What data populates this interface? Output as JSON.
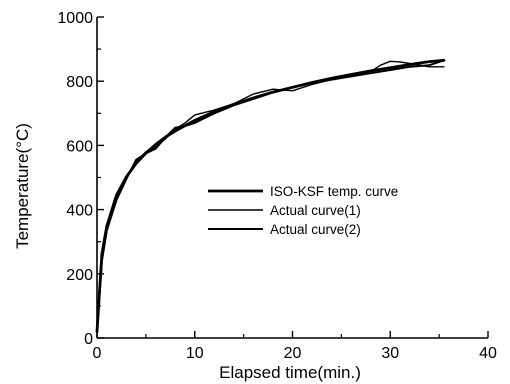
{
  "chart_data": {
    "type": "line",
    "xlabel": "Elapsed time(min.)",
    "ylabel": "Temperature(°C)",
    "xlim": [
      0,
      40
    ],
    "ylim": [
      0,
      1000
    ],
    "x_ticks": [
      "0",
      "10",
      "20",
      "30",
      "40"
    ],
    "y_ticks": [
      "0",
      "200",
      "400",
      "600",
      "800",
      "1000"
    ],
    "grid": false,
    "legend_position": "center-right",
    "series": [
      {
        "name": "ISO-KSF temp. curve",
        "color": "#000000",
        "x": [
          0,
          0.5,
          1,
          2,
          3,
          4,
          5,
          6,
          7,
          8,
          10,
          12,
          14,
          16,
          18,
          20,
          22,
          24,
          26,
          28,
          30,
          32,
          34,
          35.5
        ],
        "y": [
          20,
          262,
          349,
          445,
          502,
          544,
          576,
          603,
          626,
          645,
          678,
          705,
          728,
          748,
          766,
          781,
          796,
          809,
          821,
          832,
          842,
          852,
          861,
          865
        ]
      },
      {
        "name": "Actual curve(1)",
        "color": "#000000",
        "x": [
          0,
          0.5,
          1,
          2,
          3,
          4,
          5,
          6,
          7,
          8,
          9,
          10,
          12,
          14,
          16,
          18,
          20,
          22,
          24,
          26,
          28,
          29,
          30,
          31,
          32,
          33,
          34,
          35.5
        ],
        "y": [
          20,
          250,
          345,
          440,
          500,
          550,
          580,
          595,
          620,
          650,
          670,
          695,
          710,
          730,
          760,
          775,
          770,
          790,
          805,
          820,
          830,
          850,
          862,
          860,
          855,
          850,
          845,
          845
        ]
      },
      {
        "name": "Actual curve(2)",
        "color": "#000000",
        "x": [
          0,
          0.5,
          1,
          2,
          3,
          4,
          5,
          6,
          7,
          8,
          9,
          10,
          12,
          14,
          16,
          18,
          20,
          22,
          24,
          26,
          28,
          30,
          32,
          34,
          35.5
        ],
        "y": [
          20,
          240,
          335,
          430,
          495,
          555,
          575,
          590,
          625,
          655,
          660,
          670,
          700,
          725,
          745,
          765,
          780,
          795,
          805,
          815,
          825,
          835,
          845,
          850,
          865
        ]
      }
    ]
  }
}
